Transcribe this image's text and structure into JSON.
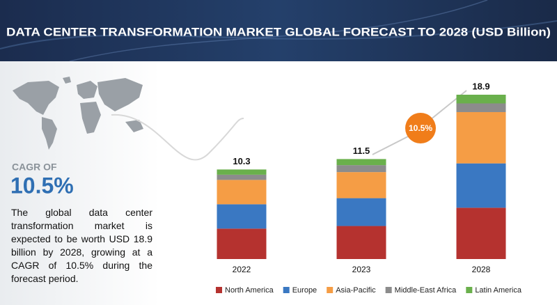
{
  "title": "DATA CENTER TRANSFORMATION MARKET GLOBAL FORECAST TO 2028 (USD Billion)",
  "side_panel": {
    "cagr_label": "CAGR OF",
    "cagr_value": "10.5%",
    "description": "The global data center transformation market is expected to be worth USD 18.9 billion by 2028, growing at a CAGR of 10.5% during the forecast period."
  },
  "chart_data": {
    "type": "stacked_bar",
    "categories": [
      "2022",
      "2023",
      "2028"
    ],
    "totals": [
      10.3,
      11.5,
      18.9
    ],
    "annotation": "10.5%",
    "series": [
      {
        "name": "North America",
        "color": "#b5322f",
        "values": [
          3.5,
          3.8,
          5.9
        ]
      },
      {
        "name": "Europe",
        "color": "#3a78c2",
        "values": [
          2.8,
          3.2,
          5.1
        ]
      },
      {
        "name": "Asia-Pacific",
        "color": "#f59d45",
        "values": [
          2.8,
          3.0,
          5.9
        ]
      },
      {
        "name": "Middle-East Africa",
        "color": "#8c8c8c",
        "values": [
          0.6,
          0.8,
          1.0
        ]
      },
      {
        "name": "Latin America",
        "color": "#6ab04c",
        "values": [
          0.6,
          0.7,
          1.0
        ]
      }
    ]
  }
}
